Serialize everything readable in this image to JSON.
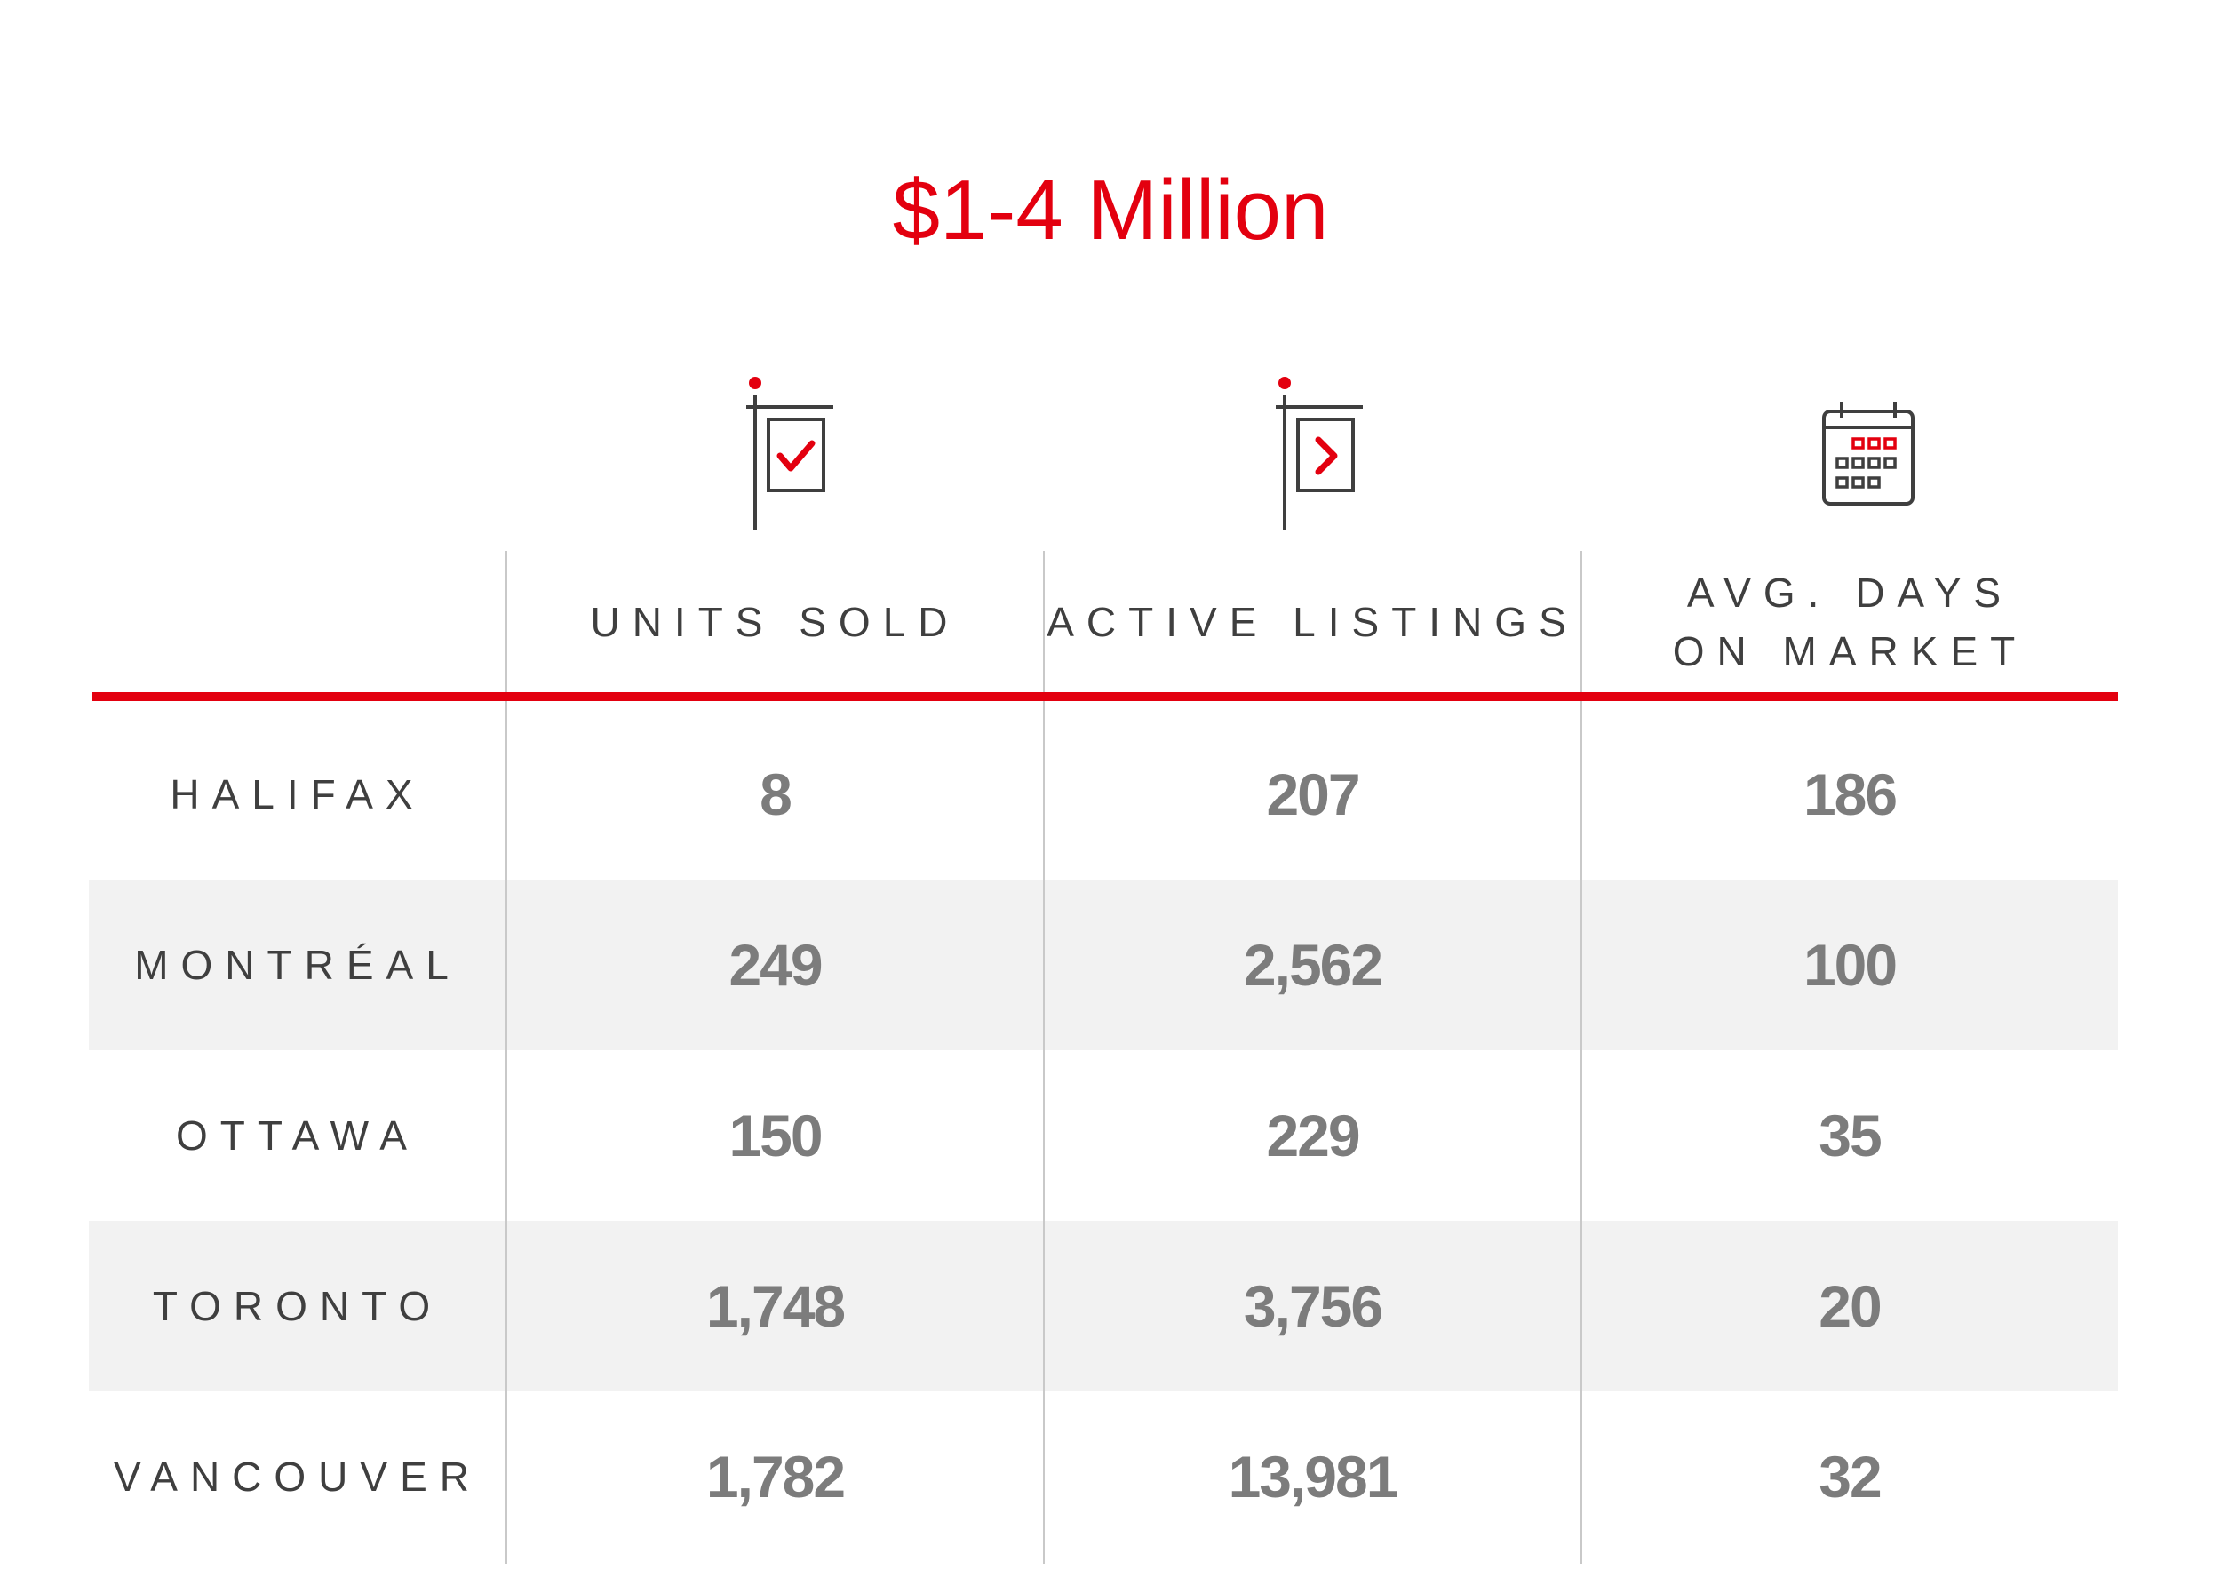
{
  "title": "$1-4 Million",
  "colors": {
    "accent": "#e3000f",
    "header_text": "#3f3f3f",
    "value_text": "#7c7c7c",
    "row_shade": "#f2f2f2",
    "divider": "#c9c9c9"
  },
  "columns": [
    {
      "icon": "sold-sign-check-icon",
      "label": "UNITS SOLD"
    },
    {
      "icon": "listing-sign-arrow-icon",
      "label": "ACTIVE LISTINGS"
    },
    {
      "icon": "calendar-icon",
      "label_line1": "AVG. DAYS",
      "label_line2": "ON MARKET"
    }
  ],
  "rows": [
    {
      "city": "HALIFAX",
      "units_sold": "8",
      "active_listings": "207",
      "avg_days": "186"
    },
    {
      "city": "MONTRÉAL",
      "units_sold": "249",
      "active_listings": "2,562",
      "avg_days": "100"
    },
    {
      "city": "OTTAWA",
      "units_sold": "150",
      "active_listings": "229",
      "avg_days": "35"
    },
    {
      "city": "TORONTO",
      "units_sold": "1,748",
      "active_listings": "3,756",
      "avg_days": "20"
    },
    {
      "city": "VANCOUVER",
      "units_sold": "1,782",
      "active_listings": "13,981",
      "avg_days": "32"
    }
  ]
}
